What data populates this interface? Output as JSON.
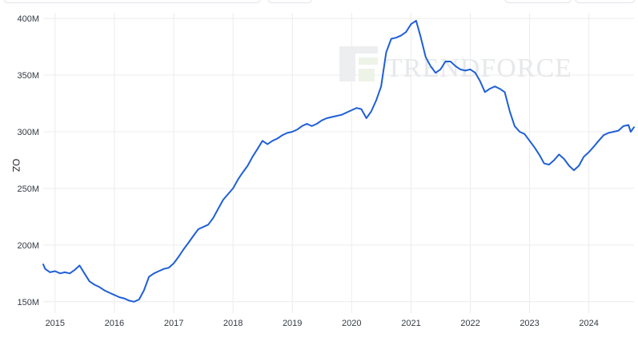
{
  "chart_data": {
    "type": "line",
    "title": "",
    "xlabel": "",
    "ylabel": "OZ",
    "x_range": [
      "2014-10-20",
      "2024-10-05"
    ],
    "ylim": [
      140000000,
      405000000
    ],
    "y_ticks": [
      {
        "value": 150000000,
        "label": "150M"
      },
      {
        "value": 200000000,
        "label": "200M"
      },
      {
        "value": 250000000,
        "label": "250M"
      },
      {
        "value": 300000000,
        "label": "300M"
      },
      {
        "value": 350000000,
        "label": "350M"
      },
      {
        "value": 400000000,
        "label": "400M"
      }
    ],
    "x_ticks": [
      {
        "value": "2015-01-01",
        "label": "2015"
      },
      {
        "value": "2016-01-01",
        "label": "2016"
      },
      {
        "value": "2017-01-01",
        "label": "2017"
      },
      {
        "value": "2018-01-01",
        "label": "2018"
      },
      {
        "value": "2019-01-01",
        "label": "2019"
      },
      {
        "value": "2020-01-01",
        "label": "2020"
      },
      {
        "value": "2021-01-01",
        "label": "2021"
      },
      {
        "value": "2022-01-01",
        "label": "2022"
      },
      {
        "value": "2023-01-01",
        "label": "2023"
      },
      {
        "value": "2024-01-01",
        "label": "2024"
      }
    ],
    "grid": true,
    "line_color": "#1f5fd6",
    "series": [
      {
        "x": [
          "2014-10-20",
          "2014-11-01",
          "2014-12-01",
          "2015-01-01",
          "2015-02-01",
          "2015-03-01",
          "2015-04-01",
          "2015-05-01",
          "2015-06-01",
          "2015-07-01",
          "2015-08-01",
          "2015-09-01",
          "2015-10-01",
          "2015-11-01",
          "2015-12-01",
          "2016-01-01",
          "2016-02-01",
          "2016-03-01",
          "2016-04-01",
          "2016-05-01",
          "2016-06-01",
          "2016-07-01",
          "2016-08-01",
          "2016-09-01",
          "2016-10-01",
          "2016-11-01",
          "2016-12-01",
          "2017-01-01",
          "2017-02-01",
          "2017-03-01",
          "2017-04-01",
          "2017-05-01",
          "2017-06-01",
          "2017-07-01",
          "2017-08-01",
          "2017-09-01",
          "2017-10-01",
          "2017-11-01",
          "2017-12-01",
          "2018-01-01",
          "2018-02-01",
          "2018-03-01",
          "2018-04-01",
          "2018-05-01",
          "2018-06-01",
          "2018-07-01",
          "2018-08-01",
          "2018-09-01",
          "2018-10-01",
          "2018-11-01",
          "2018-12-01",
          "2019-01-01",
          "2019-02-01",
          "2019-03-01",
          "2019-04-01",
          "2019-05-01",
          "2019-06-01",
          "2019-07-01",
          "2019-08-01",
          "2019-09-01",
          "2019-10-01",
          "2019-11-01",
          "2019-12-01",
          "2020-01-01",
          "2020-02-01",
          "2020-03-01",
          "2020-04-01",
          "2020-05-01",
          "2020-06-01",
          "2020-07-01",
          "2020-08-01",
          "2020-09-01",
          "2020-10-01",
          "2020-11-01",
          "2020-12-01",
          "2021-01-01",
          "2021-02-01",
          "2021-03-01",
          "2021-04-01",
          "2021-05-01",
          "2021-06-01",
          "2021-07-01",
          "2021-08-01",
          "2021-09-01",
          "2021-10-01",
          "2021-11-01",
          "2021-12-01",
          "2022-01-01",
          "2022-02-01",
          "2022-03-01",
          "2022-04-01",
          "2022-05-01",
          "2022-06-01",
          "2022-07-01",
          "2022-08-01",
          "2022-09-01",
          "2022-10-01",
          "2022-11-01",
          "2022-12-01",
          "2023-01-01",
          "2023-02-01",
          "2023-03-01",
          "2023-04-01",
          "2023-05-01",
          "2023-06-01",
          "2023-07-01",
          "2023-08-01",
          "2023-09-01",
          "2023-10-01",
          "2023-11-01",
          "2023-12-01",
          "2024-01-01",
          "2024-02-01",
          "2024-03-01",
          "2024-04-01",
          "2024-05-01",
          "2024-06-01",
          "2024-07-01",
          "2024-08-01",
          "2024-09-01",
          "2024-09-15",
          "2024-10-05"
        ],
        "values": [
          183000000,
          179000000,
          176000000,
          177000000,
          175000000,
          176000000,
          175000000,
          178000000,
          182000000,
          175000000,
          168000000,
          165000000,
          163000000,
          160000000,
          158000000,
          156000000,
          154000000,
          153000000,
          151000000,
          150000000,
          152000000,
          160000000,
          172000000,
          175000000,
          177000000,
          179000000,
          180000000,
          184000000,
          190000000,
          196000000,
          202000000,
          208000000,
          214000000,
          216000000,
          218000000,
          224000000,
          232000000,
          240000000,
          245000000,
          250000000,
          258000000,
          264000000,
          270000000,
          278000000,
          285000000,
          292000000,
          289000000,
          292000000,
          294000000,
          297000000,
          299000000,
          300000000,
          302000000,
          305000000,
          307000000,
          305000000,
          307000000,
          310000000,
          312000000,
          313000000,
          314000000,
          315000000,
          317000000,
          319000000,
          321000000,
          320000000,
          312000000,
          318000000,
          328000000,
          340000000,
          370000000,
          382000000,
          383000000,
          385000000,
          388000000,
          395000000,
          398000000,
          384000000,
          366000000,
          358000000,
          352000000,
          355000000,
          362000000,
          362000000,
          358000000,
          355000000,
          354000000,
          355000000,
          352000000,
          345000000,
          335000000,
          338000000,
          340000000,
          338000000,
          335000000,
          318000000,
          305000000,
          300000000,
          298000000,
          292000000,
          286000000,
          280000000,
          272000000,
          271000000,
          275000000,
          280000000,
          276000000,
          270000000,
          266000000,
          270000000,
          278000000,
          282000000,
          287000000,
          292000000,
          297000000,
          299000000,
          300000000,
          301000000,
          305000000,
          306000000,
          300000000,
          304000000
        ]
      }
    ]
  }
}
